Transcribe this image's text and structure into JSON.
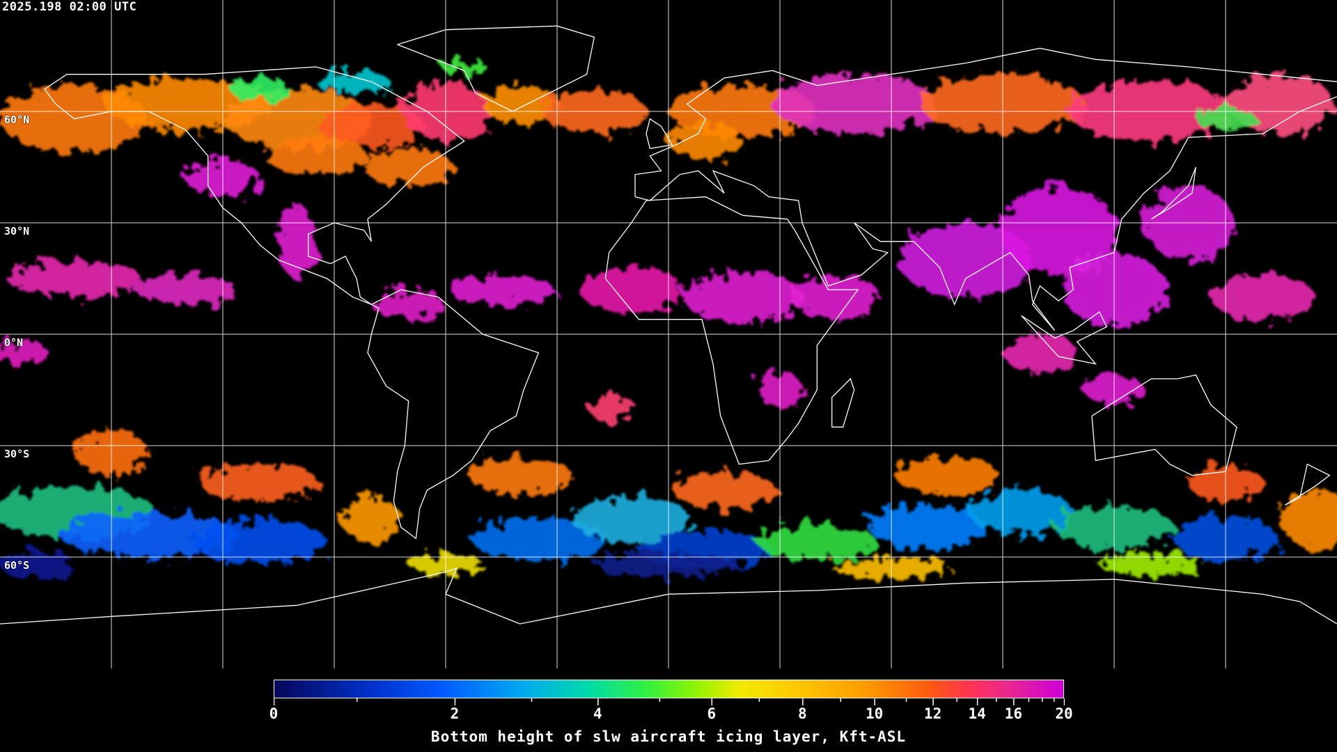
{
  "timestamp": "2025.198 02:00 UTC",
  "latitude_labels": [
    "60°N",
    "30°N",
    "0°N",
    "30°S",
    "60°S"
  ],
  "projection": "equirectangular, centered on 0° longitude, 30° graticule",
  "colorbar": {
    "title": "Bottom height of slw aircraft icing layer, Kft-ASL",
    "tick_labels": [
      "0",
      "2",
      "4",
      "6",
      "8",
      "10",
      "12",
      "14",
      "16",
      "20"
    ],
    "range": [
      0,
      20
    ],
    "colors": [
      "#07085a",
      "#0058ff",
      "#00a6f2",
      "#00dca8",
      "#98f400",
      "#f2ea00",
      "#ff9a00",
      "#ff5a10",
      "#ff3450",
      "#cc00d8"
    ]
  },
  "background_color": "#000000",
  "grid_color": "#ffffff"
}
